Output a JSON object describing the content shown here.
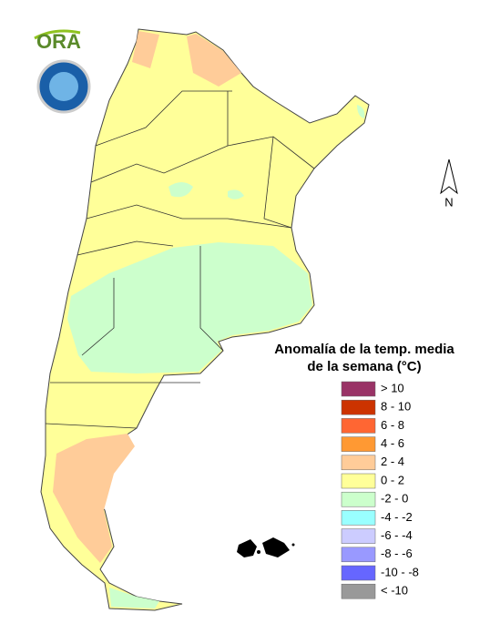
{
  "logo": {
    "text": "ORA"
  },
  "north_label": "N",
  "legend": {
    "title": [
      "Anomalía de la temp. media",
      "de la semana (°C)"
    ],
    "items": [
      {
        "label": "> 10",
        "color": "#993366"
      },
      {
        "label": "8 - 10",
        "color": "#cc3300"
      },
      {
        "label": "6 - 8",
        "color": "#ff6633"
      },
      {
        "label": "4 - 6",
        "color": "#ff9933"
      },
      {
        "label": "2 - 4",
        "color": "#ffcc99"
      },
      {
        "label": "0 - 2",
        "color": "#ffff99"
      },
      {
        "label": "-2 - 0",
        "color": "#ccffcc"
      },
      {
        "label": "-4 - -2",
        "color": "#99ffff"
      },
      {
        "label": "-6 - -4",
        "color": "#ccccff"
      },
      {
        "label": "-8 - -6",
        "color": "#9999ff"
      },
      {
        "label": "-10 - -8",
        "color": "#6666ff"
      },
      {
        "label": "< -10",
        "color": "#999999"
      }
    ]
  }
}
